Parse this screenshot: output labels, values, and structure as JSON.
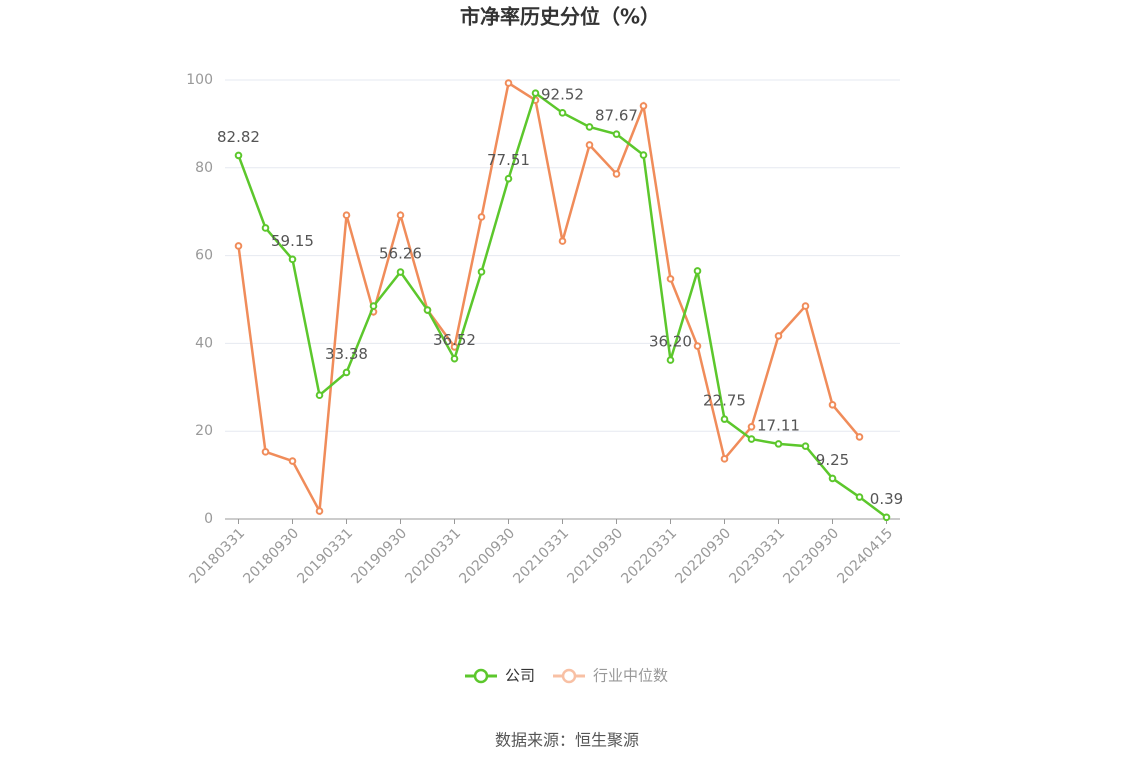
{
  "chart_data": {
    "type": "line",
    "title": "市净率历史分位（%）",
    "categories": [
      "20180331",
      null,
      "20180930",
      null,
      "20190331",
      null,
      "20190930",
      null,
      "20200331",
      null,
      "20200930",
      null,
      "20210331",
      null,
      "20210930",
      null,
      "20220331",
      null,
      "20220930",
      null,
      "20230331",
      null,
      "20230930",
      null,
      "20240415"
    ],
    "series": [
      {
        "name": "公司",
        "color": "#5cc72c",
        "values": [
          82.82,
          66.3,
          59.15,
          28.2,
          33.38,
          48.5,
          56.26,
          47.6,
          36.52,
          56.3,
          77.51,
          97.0,
          92.52,
          89.3,
          87.67,
          82.9,
          36.2,
          56.5,
          22.75,
          18.2,
          17.11,
          16.6,
          9.25,
          5.0,
          0.39
        ],
        "value_labels": [
          "82.82",
          null,
          "59.15",
          null,
          "33.38",
          null,
          "56.26",
          null,
          "36.52",
          null,
          "77.51",
          null,
          "92.52",
          null,
          "87.67",
          null,
          "36.20",
          null,
          "22.75",
          null,
          "17.11",
          null,
          "9.25",
          null,
          "0.39"
        ]
      },
      {
        "name": "行业中位数",
        "color": "#f08c5a",
        "values": [
          62.2,
          15.3,
          13.2,
          1.8,
          69.2,
          47.2,
          69.2,
          47.6,
          39.2,
          68.8,
          99.3,
          95.4,
          63.3,
          85.2,
          78.6,
          94.1,
          54.7,
          39.4,
          13.7,
          21.0,
          41.7,
          48.5,
          26.0,
          18.7,
          null
        ]
      }
    ],
    "ylim": [
      0,
      100
    ],
    "yticks": [
      0,
      20,
      40,
      60,
      80,
      100
    ],
    "grid": true,
    "source": "数据来源：恒生聚源"
  }
}
